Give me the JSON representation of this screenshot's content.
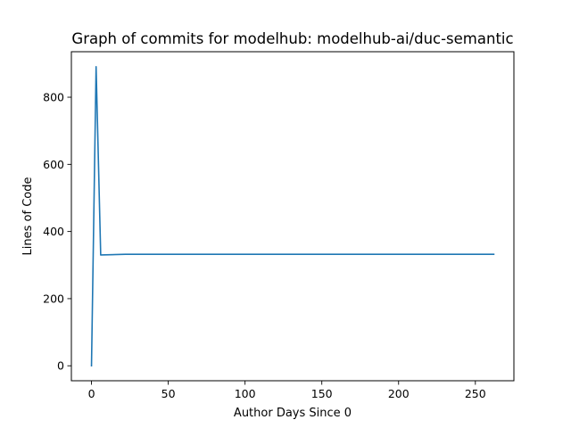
{
  "chart_data": {
    "type": "line",
    "title": "Graph of commits for modelhub: modelhub-ai/duc-semantic",
    "xlabel": "Author Days Since 0",
    "ylabel": "Lines of Code",
    "xlim": [
      -13.1,
      275.1
    ],
    "ylim": [
      -44.55,
      935.55
    ],
    "xticks": [
      0,
      50,
      100,
      150,
      200,
      250
    ],
    "yticks": [
      0,
      200,
      400,
      600,
      800
    ],
    "grid": false,
    "legend": "none",
    "series": [
      {
        "color": "#1f77b4",
        "x": [
          0,
          3,
          6,
          22,
          262
        ],
        "y": [
          0,
          891,
          330,
          332,
          332
        ]
      }
    ]
  }
}
